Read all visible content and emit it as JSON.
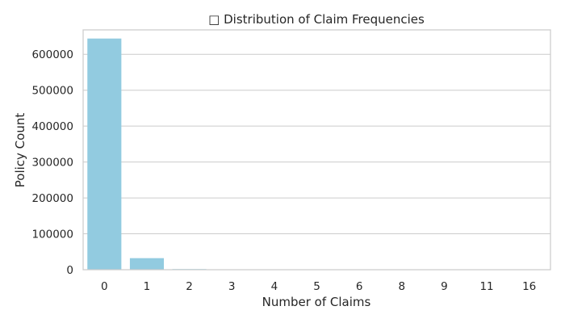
{
  "chart_data": {
    "type": "bar",
    "title": "□ Distribution of Claim Frequencies",
    "xlabel": "Number of Claims",
    "ylabel": "Policy Count",
    "categories": [
      "0",
      "1",
      "2",
      "3",
      "4",
      "5",
      "6",
      "8",
      "9",
      "11",
      "16"
    ],
    "values": [
      643900,
      32200,
      1800,
      100,
      10,
      5,
      3,
      1,
      1,
      1,
      1
    ],
    "ylim": [
      0,
      668000
    ],
    "yticks": [
      0,
      100000,
      200000,
      300000,
      400000,
      500000,
      600000
    ],
    "grid": true,
    "bar_color": "#92cbe0",
    "grid_color": "#cccccc",
    "text_color": "#262626"
  }
}
